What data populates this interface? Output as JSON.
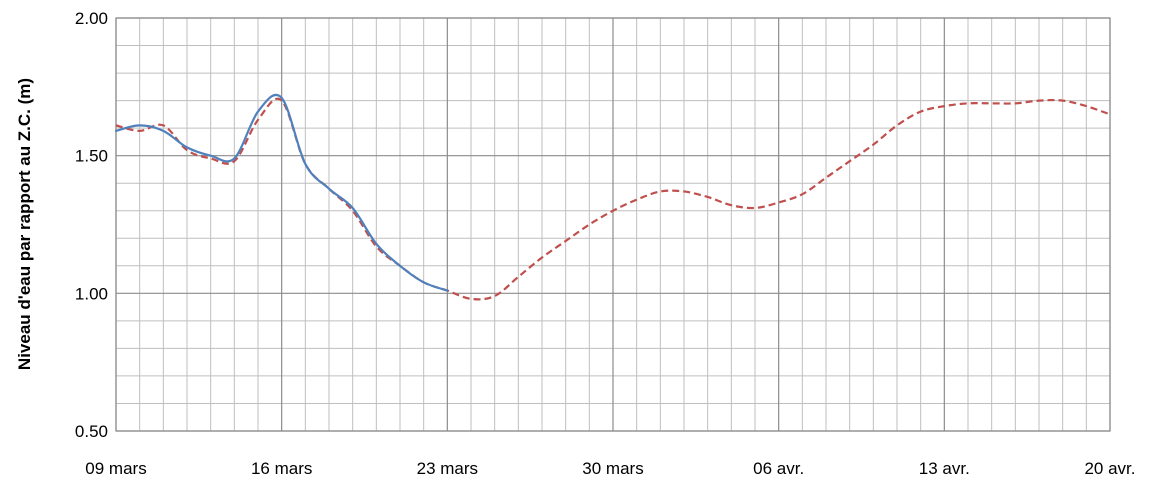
{
  "chart_data": {
    "type": "line",
    "title": "",
    "xlabel": "",
    "ylabel": "Niveau d'eau par rapport au Z.C. (m)",
    "ylim": [
      0.5,
      2.0
    ],
    "xlim": [
      "2013-03-09",
      "2013-04-20"
    ],
    "y_ticks": [
      "0.50",
      "1.00",
      "1.50",
      "2.00"
    ],
    "x_ticks": [
      "09 mars",
      "16 mars",
      "23 mars",
      "30 mars",
      "06 avr.",
      "13 avr.",
      "20 avr."
    ],
    "grid": true,
    "legend": "none",
    "series": [
      {
        "color": "#4f81bd",
        "style": "solid",
        "points": [
          [
            "2013-03-09",
            1.59
          ],
          [
            "2013-03-10",
            1.61
          ],
          [
            "2013-03-11",
            1.59
          ],
          [
            "2013-03-12",
            1.53
          ],
          [
            "2013-03-13",
            1.5
          ],
          [
            "2013-03-14",
            1.49
          ],
          [
            "2013-03-15",
            1.66
          ],
          [
            "2013-03-16",
            1.71
          ],
          [
            "2013-03-17",
            1.47
          ],
          [
            "2013-03-18",
            1.38
          ],
          [
            "2013-03-19",
            1.31
          ],
          [
            "2013-03-20",
            1.18
          ],
          [
            "2013-03-21",
            1.1
          ],
          [
            "2013-03-22",
            1.04
          ],
          [
            "2013-03-23",
            1.01
          ]
        ]
      },
      {
        "color": "#c0504d",
        "style": "dashed",
        "points": [
          [
            "2013-03-09",
            1.61
          ],
          [
            "2013-03-10",
            1.59
          ],
          [
            "2013-03-11",
            1.61
          ],
          [
            "2013-03-12",
            1.52
          ],
          [
            "2013-03-13",
            1.49
          ],
          [
            "2013-03-14",
            1.48
          ],
          [
            "2013-03-15",
            1.63
          ],
          [
            "2013-03-16",
            1.7
          ],
          [
            "2013-03-17",
            1.47
          ],
          [
            "2013-03-18",
            1.38
          ],
          [
            "2013-03-19",
            1.3
          ],
          [
            "2013-03-20",
            1.17
          ],
          [
            "2013-03-21",
            1.1
          ],
          [
            "2013-03-22",
            1.04
          ],
          [
            "2013-03-23",
            1.01
          ],
          [
            "2013-03-24",
            0.98
          ],
          [
            "2013-03-25",
            0.99
          ],
          [
            "2013-03-26",
            1.06
          ],
          [
            "2013-03-27",
            1.13
          ],
          [
            "2013-03-28",
            1.19
          ],
          [
            "2013-03-29",
            1.25
          ],
          [
            "2013-03-30",
            1.3
          ],
          [
            "2013-03-31",
            1.34
          ],
          [
            "2013-04-01",
            1.37
          ],
          [
            "2013-04-02",
            1.37
          ],
          [
            "2013-04-03",
            1.35
          ],
          [
            "2013-04-04",
            1.32
          ],
          [
            "2013-04-05",
            1.31
          ],
          [
            "2013-04-06",
            1.33
          ],
          [
            "2013-04-07",
            1.36
          ],
          [
            "2013-04-08",
            1.42
          ],
          [
            "2013-04-09",
            1.48
          ],
          [
            "2013-04-10",
            1.54
          ],
          [
            "2013-04-11",
            1.61
          ],
          [
            "2013-04-12",
            1.66
          ],
          [
            "2013-04-13",
            1.68
          ],
          [
            "2013-04-14",
            1.69
          ],
          [
            "2013-04-15",
            1.69
          ],
          [
            "2013-04-16",
            1.69
          ],
          [
            "2013-04-17",
            1.7
          ],
          [
            "2013-04-18",
            1.7
          ],
          [
            "2013-04-19",
            1.68
          ],
          [
            "2013-04-20",
            1.65
          ]
        ]
      }
    ]
  }
}
